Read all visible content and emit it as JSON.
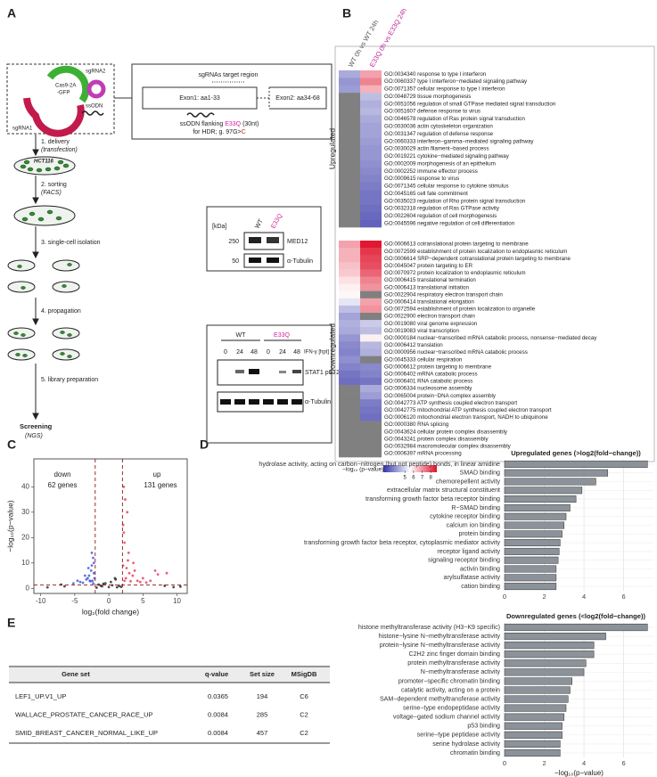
{
  "panel_labels": [
    "A",
    "B",
    "C",
    "D",
    "E"
  ],
  "panel_a": {
    "plasmid": {
      "sgrna2": "sgRNA2",
      "cas9": "Cas9-2A",
      "gfp": "-GFP",
      "sgrna1": "sgRNA1",
      "ssodn": "ssODN"
    },
    "steps": [
      {
        "label": "1. delivery",
        "detail": "(transfection)"
      },
      {
        "label": "2. sorting",
        "detail": "(FACS)"
      },
      {
        "label": "3. single-cell isolation"
      },
      {
        "label": "4. propagation"
      },
      {
        "label": "5. library preparation"
      }
    ],
    "cell_line": "HCT116",
    "screening": "Screening",
    "screening_detail": "(NGS)",
    "target": {
      "title": "sgRNAs target region",
      "exon1": "Exon1: aa1-33",
      "exon2": "Exon2: aa34-68",
      "ssodn_prefix": "ssODN flanking ",
      "mutation": "E33Q",
      "ssodn_suffix": " (30nt)",
      "hdr_prefix": "for HDR; g. 97G>",
      "hdr_base": "C"
    },
    "blot1": {
      "unit": "[kDa]",
      "lanes": [
        "WT",
        "E33Q"
      ],
      "markers": [
        250,
        50
      ],
      "bands": [
        "MED12",
        "α-Tubulin"
      ]
    },
    "blot2": {
      "groups": [
        "WT",
        "E33Q"
      ],
      "treatment": "IFN-γ [hpt]",
      "timepoints": [
        0,
        24,
        48,
        0,
        24,
        48
      ],
      "bands": [
        "STAT1 pS727",
        "α-Tubulin"
      ]
    }
  },
  "panel_e": {
    "header": [
      "Gene set",
      "q-value",
      "Set size",
      "MSigDB"
    ],
    "rows": [
      [
        "LEF1_UP.V1_UP",
        0.0365,
        194,
        "C6"
      ],
      [
        "WALLACE_PROSTATE_CANCER_RACE_UP",
        0.0084,
        285,
        "C2"
      ],
      [
        "SMID_BREAST_CANCER_NORMAL_LIKE_UP",
        0.0084,
        457,
        "C2"
      ]
    ]
  },
  "chart_data": [
    {
      "type": "heatmap",
      "columns": [
        "WT 0h vs WT 24h",
        "E33Q 0h vs E33Q 24h"
      ],
      "groups": [
        {
          "name": "Upregulated",
          "rows": [
            "GO:0034340 response to type I interferon",
            "GO:0060337 type I interferon−mediated signaling pathway",
            "GO:0071357 cellular response to type I interferon",
            "GO:0048729 tissue morphogenesis",
            "GO:0051056 regulation of small GTPase mediated signal transduction",
            "GO:0051607 defense response to virus",
            "GO:0046578 regulation of Ras protein signal transduction",
            "GO:0030036 actin cytoskeleton organization",
            "GO:0031347 regulation of defense response",
            "GO:0060333 interferon−gamma−mediated signaling pathway",
            "GO:0030029 actin filament−based process",
            "GO:0019221 cytokine−mediated signaling pathway",
            "GO:0002009 morphogenesis of an epithelium",
            "GO:0002252 immune effector process",
            "GO:0009615 response to virus",
            "GO:0071345 cellular response to cytokine stimulus",
            "GO:0045165 cell fate commitment",
            "GO:0035023 regulation of Rho protein signal transduction",
            "GO:0032318 regulation of Ras GTPase activity",
            "GO:0022604 regulation of cell morphogenesis",
            "GO:0045596 negative regulation of cell differentiation"
          ],
          "values": [
            [
              4.3,
              6.8
            ],
            [
              4.0,
              7.2
            ],
            [
              4.1,
              6.6
            ],
            [
              null,
              4.6
            ],
            [
              null,
              4.4
            ],
            [
              null,
              4.5
            ],
            [
              null,
              4.3
            ],
            [
              null,
              4.2
            ],
            [
              null,
              4.2
            ],
            [
              null,
              4.1
            ],
            [
              null,
              4.0
            ],
            [
              null,
              4.0
            ],
            [
              null,
              3.9
            ],
            [
              null,
              3.8
            ],
            [
              null,
              3.7
            ],
            [
              null,
              3.6
            ],
            [
              null,
              3.5
            ],
            [
              null,
              3.5
            ],
            [
              null,
              3.4
            ],
            [
              null,
              3.3
            ],
            [
              null,
              3.2
            ]
          ]
        },
        {
          "name": "Downregulated",
          "rows": [
            "GO:0006613 cotranslational protein targeting to membrane",
            "GO:0072599 establishment of protein localization to endoplasmic reticulum",
            "GO:0006614 SRP−dependent cotranslational protein targeting to membrane",
            "GO:0045047 protein targeting to ER",
            "GO:0070972 protein localization to endoplasmic reticulum",
            "GO:0006415 translational termination",
            "GO:0006413 translational initiation",
            "GO:0022904 respiratory electron transport chain",
            "GO:0006414 translational elongation",
            "GO:0072594 establishment of protein localization to organelle",
            "GO:0022900 electron transport chain",
            "GO:0019080 viral genome expression",
            "GO:0019083 viral transcription",
            "GO:0000184 nuclear−transcribed mRNA catabolic process, nonsense−mediated decay",
            "GO:0006412 translation",
            "GO:0000956 nuclear−transcribed mRNA catabolic process",
            "GO:0045333 cellular respiration",
            "GO:0006612 protein targeting to membrane",
            "GO:0006402 mRNA catabolic process",
            "GO:0006401 RNA catabolic process",
            "GO:0006334 nucleosome assembly",
            "GO:0065004 protein−DNA complex assembly",
            "GO:0042773 ATP synthesis coupled electron transport",
            "GO:0042775 mitochondrial ATP synthesis coupled electron transport",
            "GO:0006120 mitochondrial electron transport, NADH to ubiquinone",
            "GO:0000380 RNA splicing",
            "GO:0043624 cellular protein complex disassembly",
            "GO:0043241 protein complex disassembly",
            "GO:0032984 macromolecular complex disassembly",
            "GO:0006397 mRNA processing"
          ],
          "values": [
            [
              6.8,
              8.6
            ],
            [
              6.6,
              8.2
            ],
            [
              6.6,
              8.0
            ],
            [
              6.4,
              7.9
            ],
            [
              6.3,
              7.6
            ],
            [
              6.0,
              7.2
            ],
            [
              5.8,
              7.0
            ],
            [
              5.7,
              null
            ],
            [
              5.2,
              6.8
            ],
            [
              4.6,
              7.0
            ],
            [
              4.2,
              null
            ],
            [
              4.4,
              4.8
            ],
            [
              4.3,
              4.6
            ],
            [
              4.0,
              5.8
            ],
            [
              3.8,
              4.5
            ],
            [
              3.7,
              4.4
            ],
            [
              3.9,
              null
            ],
            [
              3.7,
              3.8
            ],
            [
              3.5,
              3.7
            ],
            [
              3.4,
              3.5
            ],
            [
              null,
              4.3
            ],
            [
              null,
              4.1
            ],
            [
              null,
              3.6
            ],
            [
              null,
              3.5
            ],
            [
              null,
              3.4
            ],
            [
              null,
              null
            ],
            [
              null,
              null
            ],
            [
              null,
              null
            ],
            [
              null,
              null
            ],
            [
              null,
              null
            ]
          ]
        }
      ],
      "colorbar": {
        "title": "−log₁₀ (p−value)",
        "clim": [
          2.5,
          8.7
        ],
        "ticks": [
          5,
          6,
          7,
          8
        ],
        "colors": [
          "#3434a8",
          "#ffffff",
          "#e0102a"
        ]
      },
      "na_color": "#808080"
    },
    {
      "type": "scatter",
      "xlabel": "log₂(fold change)",
      "ylabel": "−log₁₀(p−value)",
      "xlim": [
        -11,
        11.5
      ],
      "ylim": [
        -2,
        51
      ],
      "xticks": [
        -10,
        -5,
        0,
        5,
        10
      ],
      "yticks": [
        0,
        10,
        20,
        30,
        40
      ],
      "vlines": [
        -2,
        2
      ],
      "hline": 1.3,
      "annotations": [
        "62 genes",
        "131 genes"
      ],
      "series": [
        {
          "name": "down",
          "color": "#3c54d6",
          "x": [
            -2.2,
            -2.5,
            -3.1,
            -2.8,
            -4.2,
            -3.5,
            -2.3,
            -2.6,
            -3.0,
            -2.1,
            -5.2,
            -2.4,
            -2.9,
            -3.8,
            -2.2,
            -2.7,
            -3.3,
            -2.5,
            -4.6,
            -2.3
          ],
          "y": [
            6,
            9,
            4,
            3,
            2.5,
            5,
            12,
            7,
            8,
            4,
            2,
            3,
            5,
            2.2,
            10,
            2.8,
            3.5,
            14,
            3,
            2
          ]
        },
        {
          "name": "up",
          "color": "#e8365a",
          "x": [
            2.1,
            2.3,
            2.6,
            3.0,
            3.5,
            4.2,
            2.2,
            2.8,
            5.0,
            6.1,
            2.4,
            3.8,
            7.2,
            2.9,
            2.5,
            4.6,
            2.2,
            3.2,
            6.8,
            2.7,
            8.5,
            2.3,
            3.6,
            2.1,
            5.5
          ],
          "y": [
            9,
            18,
            8,
            6,
            5,
            3,
            22,
            11,
            4,
            3,
            35,
            7,
            5.5,
            14,
            4,
            2.5,
            40,
            2.8,
            7,
            30,
            6,
            3,
            10,
            25,
            2.3
          ]
        },
        {
          "color": "#222222",
          "x": [
            -1.5,
            -1,
            -0.5,
            0,
            0.5,
            1,
            1.5,
            -1.8,
            1.8,
            -0.8,
            0.3,
            1.2,
            -1.2,
            0.9,
            -7,
            -6.5,
            8.2,
            9.5,
            -9,
            10.5
          ],
          "y": [
            1.5,
            0.8,
            2,
            0.5,
            1.2,
            3.5,
            1,
            0.3,
            0.6,
            1.8,
            2.5,
            0.4,
            1.1,
            4,
            1.5,
            0.8,
            1,
            0.5,
            0.4,
            0.7
          ]
        }
      ]
    },
    {
      "type": "barh",
      "title": "Upregulated genes (>log2(fold−change))",
      "categories": [
        "hydrolase activity, acting on carbon−nitrogen (but not peptide) bonds, in linear amidine",
        "SMAD binding",
        "chemorepellent activity",
        "extracellular matrix structural constituent",
        "transforming growth factor beta receptor binding",
        "R−SMAD binding",
        "cytokine receptor binding",
        "calcium ion binding",
        "protein binding",
        "transforming growth factor beta receptor, cytoplasmic mediator activity",
        "receptor ligand activity",
        "signaling receptor binding",
        "activin binding",
        "arylsulfatase activity",
        "cation binding"
      ],
      "values": [
        7.2,
        5.2,
        4.6,
        3.9,
        3.6,
        3.3,
        3.1,
        3.0,
        2.9,
        2.8,
        2.75,
        2.7,
        2.6,
        2.6,
        2.6
      ],
      "color": "#8c9299",
      "xlim": [
        0,
        7.5
      ],
      "xticks": [
        0,
        2,
        4,
        6
      ],
      "grid": true
    },
    {
      "type": "barh",
      "title": "Downregulated genes (<log2(fold−change))",
      "xlabel": "−log₁₀(p−value)",
      "categories": [
        "histone methyltransferase activity (H3−K9 specific)",
        "histone−lysine N−methyltransferase activity",
        "protein−lysine N−methyltransferase activity",
        "C2H2 zinc finger domain binding",
        "protein methyltransferase activity",
        "N−methyltransferase activity",
        "promoter−specific chromatin binding",
        "catalytic activity, acting on a protein",
        "SAM−dependent methyltransferase activity",
        "serine−type endopeptidase activity",
        "voltage−gated sodium channel activity",
        "p53 binding",
        "serine−type peptidase activity",
        "serine hydrolase activity",
        "chromatin binding"
      ],
      "values": [
        7.2,
        5.1,
        4.5,
        4.5,
        4.1,
        4.0,
        3.4,
        3.3,
        3.2,
        3.1,
        3.0,
        2.9,
        2.9,
        2.8,
        2.8
      ],
      "color": "#8c9299",
      "xlim": [
        0,
        7.5
      ],
      "xticks": [
        0,
        2,
        4,
        6
      ],
      "grid": true
    }
  ]
}
